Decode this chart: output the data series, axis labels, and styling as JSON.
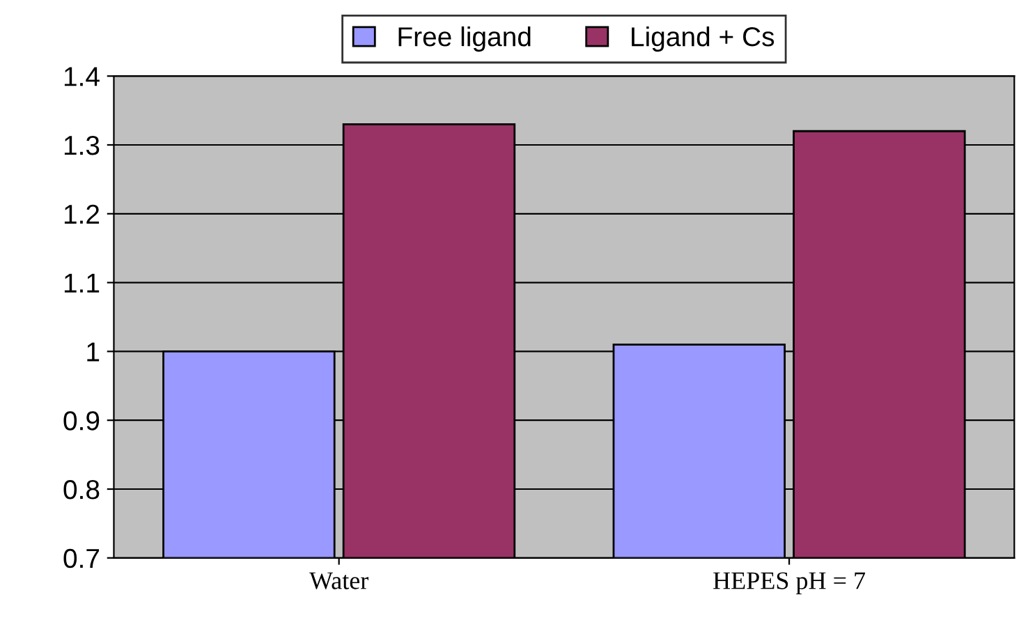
{
  "chart_data": {
    "type": "bar",
    "categories": [
      "Water",
      "HEPES pH = 7"
    ],
    "series": [
      {
        "name": "Free ligand",
        "color": "#9999ff",
        "values": [
          1.0,
          1.01
        ]
      },
      {
        "name": "Ligand + Cs",
        "color": "#993366",
        "values": [
          1.33,
          1.32
        ]
      }
    ],
    "ylim": [
      0.7,
      1.4
    ],
    "yticks": [
      0.7,
      0.8,
      0.9,
      1,
      1.1,
      1.2,
      1.3,
      1.4
    ],
    "grid": "y",
    "legend": "top"
  }
}
